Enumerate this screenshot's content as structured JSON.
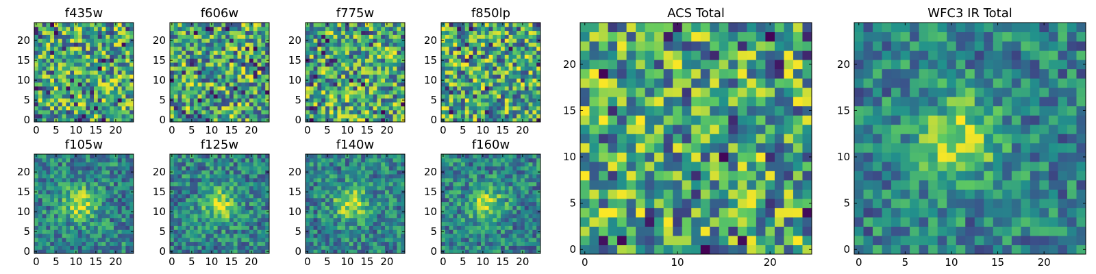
{
  "colormap": [
    "#440154",
    "#3b528b",
    "#21918c",
    "#5ec962",
    "#fde725"
  ],
  "chart_data": [
    {
      "type": "heatmap",
      "title": "f435w",
      "xticks": [
        0,
        5,
        10,
        15,
        20
      ],
      "yticks": [
        0,
        5,
        10,
        15,
        20
      ],
      "xlim": [
        -0.5,
        24.5
      ],
      "ylim": [
        -0.5,
        24.5
      ],
      "grid_size": 25,
      "pattern": "noise",
      "seed": 11
    },
    {
      "type": "heatmap",
      "title": "f606w",
      "xticks": [
        0,
        5,
        10,
        15,
        20
      ],
      "yticks": [
        0,
        5,
        10,
        15,
        20
      ],
      "xlim": [
        -0.5,
        24.5
      ],
      "ylim": [
        -0.5,
        24.5
      ],
      "grid_size": 25,
      "pattern": "noise",
      "seed": 23
    },
    {
      "type": "heatmap",
      "title": "f775w",
      "xticks": [
        0,
        5,
        10,
        15,
        20
      ],
      "yticks": [
        0,
        5,
        10,
        15,
        20
      ],
      "xlim": [
        -0.5,
        24.5
      ],
      "ylim": [
        -0.5,
        24.5
      ],
      "grid_size": 25,
      "pattern": "noise",
      "seed": 37
    },
    {
      "type": "heatmap",
      "title": "f850lp",
      "xticks": [
        0,
        5,
        10,
        15,
        20
      ],
      "yticks": [
        0,
        5,
        10,
        15,
        20
      ],
      "xlim": [
        -0.5,
        24.5
      ],
      "ylim": [
        -0.5,
        24.5
      ],
      "grid_size": 25,
      "pattern": "noise",
      "seed": 41
    },
    {
      "type": "heatmap",
      "title": "f105w",
      "xticks": [
        0,
        5,
        10,
        15,
        20
      ],
      "yticks": [
        0,
        5,
        10,
        15,
        20
      ],
      "xlim": [
        -0.5,
        24.5
      ],
      "ylim": [
        -0.5,
        24.5
      ],
      "grid_size": 25,
      "pattern": "source",
      "source_center": [
        11,
        12
      ],
      "seed": 53
    },
    {
      "type": "heatmap",
      "title": "f125w",
      "xticks": [
        0,
        5,
        10,
        15,
        20
      ],
      "yticks": [
        0,
        5,
        10,
        15,
        20
      ],
      "xlim": [
        -0.5,
        24.5
      ],
      "ylim": [
        -0.5,
        24.5
      ],
      "grid_size": 25,
      "pattern": "source",
      "source_center": [
        12,
        12
      ],
      "seed": 67
    },
    {
      "type": "heatmap",
      "title": "f140w",
      "xticks": [
        0,
        5,
        10,
        15,
        20
      ],
      "yticks": [
        0,
        5,
        10,
        15,
        20
      ],
      "xlim": [
        -0.5,
        24.5
      ],
      "ylim": [
        -0.5,
        24.5
      ],
      "grid_size": 25,
      "pattern": "source",
      "source_center": [
        11,
        12
      ],
      "seed": 79
    },
    {
      "type": "heatmap",
      "title": "f160w",
      "xticks": [
        0,
        5,
        10,
        15,
        20
      ],
      "yticks": [
        0,
        5,
        10,
        15,
        20
      ],
      "xlim": [
        -0.5,
        24.5
      ],
      "ylim": [
        -0.5,
        24.5
      ],
      "grid_size": 25,
      "pattern": "source",
      "source_center": [
        11,
        12
      ],
      "seed": 83
    },
    {
      "type": "heatmap",
      "title": "ACS Total",
      "xticks": [
        0,
        10,
        20
      ],
      "yticks": [
        0,
        5,
        10,
        15,
        20
      ],
      "xlim": [
        -0.5,
        24.5
      ],
      "ylim": [
        -0.5,
        24.5
      ],
      "grid_size": 25,
      "pattern": "noise",
      "seed": 97
    },
    {
      "type": "heatmap",
      "title": "WFC3 IR Total",
      "xticks": [
        0,
        5,
        10,
        15,
        20
      ],
      "yticks": [
        0,
        5,
        10,
        15,
        20
      ],
      "xlim": [
        -0.5,
        24.5
      ],
      "ylim": [
        -0.5,
        24.5
      ],
      "grid_size": 25,
      "pattern": "source",
      "source_center": [
        11,
        12
      ],
      "seed": 101
    }
  ]
}
